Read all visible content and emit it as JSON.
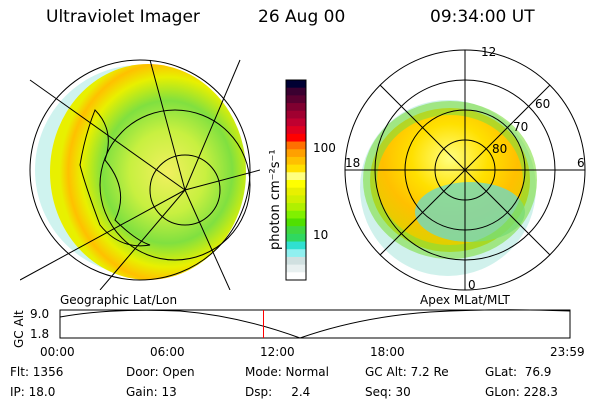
{
  "header": {
    "instrument": "Ultraviolet Imager",
    "date": "26 Aug 00",
    "time": "09:34:00 UT"
  },
  "colorbar": {
    "label": "photon cm⁻²s⁻¹",
    "ticks": [
      "100",
      "10"
    ],
    "colors": [
      "#000033",
      "#3a0030",
      "#5a0030",
      "#800030",
      "#a00030",
      "#c00030",
      "#e00020",
      "#ff0000",
      "#ff7000",
      "#ffa000",
      "#ffc000",
      "#ffe000",
      "#ffff80",
      "#ffff00",
      "#e8f000",
      "#d0f000",
      "#b0f000",
      "#80f000",
      "#50e000",
      "#40d840",
      "#30d860",
      "#30e0d0",
      "#90f0f0",
      "#d0e0e0",
      "#e8f0f0",
      "#ffffff"
    ]
  },
  "left_panel": {
    "label": "Geographic Lat/Lon"
  },
  "right_panel": {
    "label": "Apex MLat/MLT",
    "mlt_labels": [
      "12",
      "18",
      "6",
      "0"
    ],
    "lat_labels": [
      "60",
      "70",
      "80"
    ]
  },
  "timeline": {
    "ylabel": "GC Alt",
    "y_ticks": [
      "9.0",
      "1.8"
    ],
    "x_ticks": [
      "00:00",
      "06:00",
      "12:00",
      "18:00",
      "23:59"
    ],
    "current_time_fraction": 0.399,
    "marker_color": "#ff0000"
  },
  "info": {
    "flt": "Flt: 1356",
    "ip": "IP: 18.0",
    "door": "Door: Open",
    "gain": "Gain: 13",
    "mode": "Mode: Normal",
    "dsp": "Dsp:     2.4",
    "gc_alt": "GC Alt: 7.2 Re",
    "seq": "Seq: 30",
    "glat": "GLat:  76.9",
    "glon": "GLon: 228.3"
  }
}
